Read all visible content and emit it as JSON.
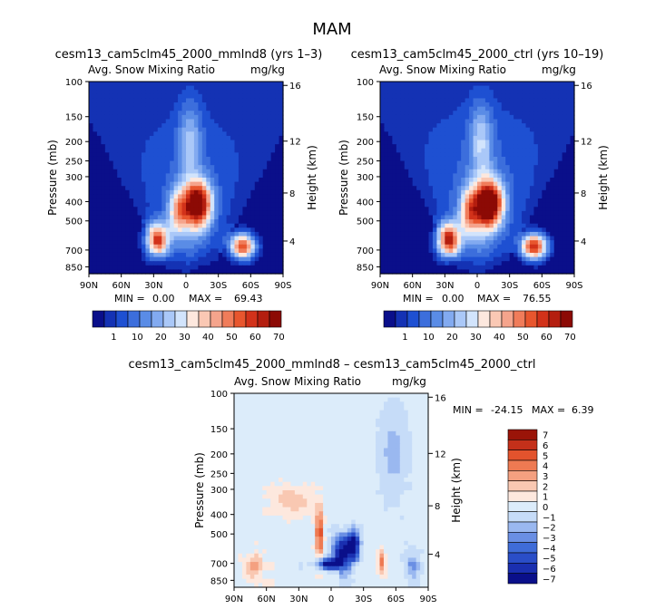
{
  "figure": {
    "title": "MAM"
  },
  "colors": {
    "sequential": [
      "#0a0f8a",
      "#1432b4",
      "#1e50d2",
      "#3c6edc",
      "#5a8ce6",
      "#82aaf0",
      "#aac8f8",
      "#d2e4fc",
      "#fde8de",
      "#fac8b4",
      "#f5a48c",
      "#f07c5a",
      "#e8562e",
      "#d2321a",
      "#b41e0f",
      "#8c0a05"
    ],
    "diverging": [
      "#0a0f8a",
      "#1a2fb0",
      "#2a4ec8",
      "#3f6cd8",
      "#6a8fe4",
      "#9ab8f0",
      "#c6dcf8",
      "#dcecfa",
      "#fde8de",
      "#f9c8b2",
      "#f4a080",
      "#ee7a52",
      "#e2532d",
      "#c4301a",
      "#9a1408"
    ]
  },
  "chart_data": [
    {
      "type": "heatmap",
      "id": "top-left",
      "title": "cesm13_cam5clm45_2000_mmlnd8 (yrs 1–3)",
      "variable_label": "Avg. Snow Mixing Ratio",
      "units_label": "mg/kg",
      "ylabel": "Pressure (mb)",
      "y2label": "Height (km)",
      "x_ticks": [
        "90N",
        "60N",
        "30N",
        "0",
        "30S",
        "60S",
        "90S"
      ],
      "y_ticks": [
        "100",
        "150",
        "200",
        "250",
        "300",
        "400",
        "500",
        "700",
        "850"
      ],
      "y2_ticks": [
        "16",
        "12",
        "8",
        "4"
      ],
      "stats_min": "0.00",
      "stats_max": "69.43",
      "colorbar_labels": [
        "1",
        "10",
        "20",
        "30",
        "40",
        "50",
        "60",
        "70"
      ],
      "field": {
        "pattern": "snow",
        "maxval": 69.43
      }
    },
    {
      "type": "heatmap",
      "id": "top-right",
      "title": "cesm13_cam5clm45_2000_ctrl (yrs 10–19)",
      "variable_label": "Avg. Snow Mixing Ratio",
      "units_label": "mg/kg",
      "ylabel": "Pressure (mb)",
      "y2label": "Height (km)",
      "x_ticks": [
        "90N",
        "60N",
        "30N",
        "0",
        "30S",
        "60S",
        "90S"
      ],
      "y_ticks": [
        "100",
        "150",
        "200",
        "250",
        "300",
        "400",
        "500",
        "700",
        "850"
      ],
      "y2_ticks": [
        "16",
        "12",
        "8",
        "4"
      ],
      "stats_min": "0.00",
      "stats_max": "76.55",
      "colorbar_labels": [
        "1",
        "10",
        "20",
        "30",
        "40",
        "50",
        "60",
        "70"
      ],
      "field": {
        "pattern": "snow",
        "maxval": 76.55
      }
    },
    {
      "type": "heatmap",
      "id": "bottom-diff",
      "title": "cesm13_cam5clm45_2000_mmlnd8 – cesm13_cam5clm45_2000_ctrl",
      "variable_label": "Avg. Snow Mixing Ratio",
      "units_label": "mg/kg",
      "ylabel": "Pressure (mb)",
      "y2label": "Height (km)",
      "x_ticks": [
        "90N",
        "60N",
        "30N",
        "0",
        "30S",
        "60S",
        "90S"
      ],
      "y_ticks": [
        "100",
        "150",
        "200",
        "250",
        "300",
        "400",
        "500",
        "700",
        "850"
      ],
      "y2_ticks": [
        "16",
        "12",
        "8",
        "4"
      ],
      "stats_min": "-24.15",
      "stats_max": "6.39",
      "colorbar_labels": [
        "7",
        "6",
        "5",
        "4",
        "3",
        "2",
        "1",
        "0",
        "−1",
        "−2",
        "−3",
        "−4",
        "−5",
        "−6",
        "−7"
      ],
      "field": {
        "pattern": "diff",
        "min": -24.15,
        "max": 6.39
      }
    }
  ]
}
